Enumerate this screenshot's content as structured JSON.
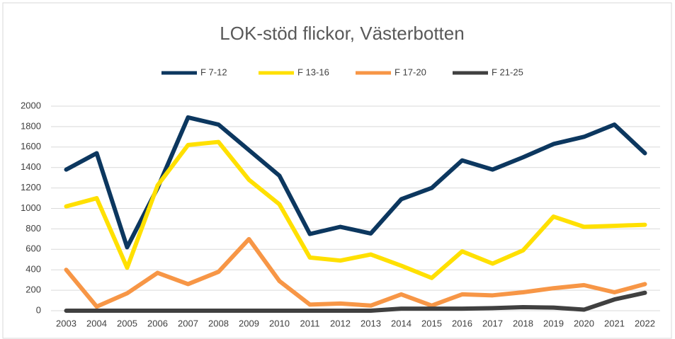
{
  "chart_data": {
    "type": "line",
    "title": "LOK-stöd flickor, Västerbotten",
    "categories": [
      "2003",
      "2004",
      "2005",
      "2006",
      "2007",
      "2008",
      "2009",
      "2010",
      "2011",
      "2012",
      "2013",
      "2014",
      "2015",
      "2016",
      "2017",
      "2018",
      "2019",
      "2020",
      "2021",
      "2022"
    ],
    "series": [
      {
        "name": "F 7-12",
        "color": "#0c375f",
        "values": [
          1380,
          1540,
          620,
          1200,
          1890,
          1820,
          1570,
          1320,
          750,
          820,
          755,
          1090,
          1200,
          1470,
          1380,
          1500,
          1630,
          1700,
          1820,
          1540
        ]
      },
      {
        "name": "F 13-16",
        "color": "#ffe000",
        "values": [
          1020,
          1100,
          420,
          1225,
          1620,
          1650,
          1280,
          1040,
          520,
          490,
          550,
          440,
          320,
          580,
          460,
          590,
          920,
          820,
          830,
          840
        ]
      },
      {
        "name": "F 17-20",
        "color": "#f79646",
        "values": [
          400,
          40,
          170,
          370,
          260,
          380,
          700,
          290,
          60,
          70,
          50,
          160,
          50,
          160,
          150,
          180,
          220,
          250,
          180,
          260
        ]
      },
      {
        "name": "F 21-25",
        "color": "#404040",
        "values": [
          0,
          0,
          0,
          0,
          0,
          0,
          0,
          0,
          0,
          0,
          0,
          20,
          20,
          20,
          25,
          35,
          30,
          10,
          110,
          175
        ]
      }
    ],
    "ylim": [
      0,
      2000
    ],
    "yticks": [
      0,
      200,
      400,
      600,
      800,
      1000,
      1200,
      1400,
      1600,
      1800,
      2000
    ],
    "grid": true,
    "legend": "top"
  }
}
